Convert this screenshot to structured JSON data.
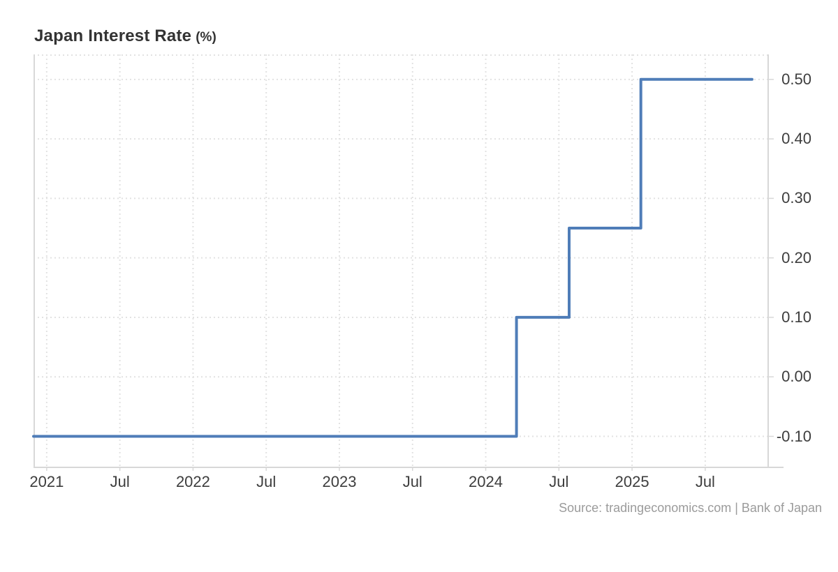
{
  "header": {
    "title": "Japan Interest Rate",
    "unit_suffix": "(%)"
  },
  "footer": {
    "source_text": "Source: tradingeconomics.com | Bank of Japan"
  },
  "colors": {
    "line": "#4f7db8",
    "grid": "#e2e2e2",
    "plot_border": "#d8d8d8",
    "tick": "#d8d8d8",
    "axis_label": "#3d3d3d",
    "title_text": "#333333",
    "source_text": "#9b9b9b",
    "background": "#ffffff"
  },
  "chart_data": {
    "type": "line",
    "step": true,
    "title": "Japan Interest Rate (%)",
    "xlabel": "",
    "ylabel": "%",
    "legend": "none",
    "grid": "dotted",
    "x_range_decimal_years": [
      2020.91,
      2025.93
    ],
    "y_range": [
      -0.151,
      0.542
    ],
    "series": [
      {
        "name": "Japan Interest Rate",
        "points": [
          [
            2020.91,
            -0.1
          ],
          [
            2024.21,
            -0.1
          ],
          [
            2024.21,
            0.1
          ],
          [
            2024.57,
            0.1
          ],
          [
            2024.57,
            0.25
          ],
          [
            2025.06,
            0.25
          ],
          [
            2025.06,
            0.5
          ],
          [
            2025.82,
            0.5
          ]
        ]
      }
    ],
    "x_ticks": [
      {
        "value": 2021.0,
        "label": "2021"
      },
      {
        "value": 2021.5,
        "label": "Jul"
      },
      {
        "value": 2022.0,
        "label": "2022"
      },
      {
        "value": 2022.5,
        "label": "Jul"
      },
      {
        "value": 2023.0,
        "label": "2023"
      },
      {
        "value": 2023.5,
        "label": "Jul"
      },
      {
        "value": 2024.0,
        "label": "2024"
      },
      {
        "value": 2024.5,
        "label": "Jul"
      },
      {
        "value": 2025.0,
        "label": "2025"
      },
      {
        "value": 2025.5,
        "label": "Jul"
      }
    ],
    "y_ticks": [
      {
        "value": 0.5,
        "label": "0.50"
      },
      {
        "value": 0.4,
        "label": "0.40"
      },
      {
        "value": 0.3,
        "label": "0.30"
      },
      {
        "value": 0.2,
        "label": "0.20"
      },
      {
        "value": 0.1,
        "label": "0.10"
      },
      {
        "value": 0.0,
        "label": "0.00"
      },
      {
        "value": -0.1,
        "label": "-0.10"
      }
    ]
  }
}
